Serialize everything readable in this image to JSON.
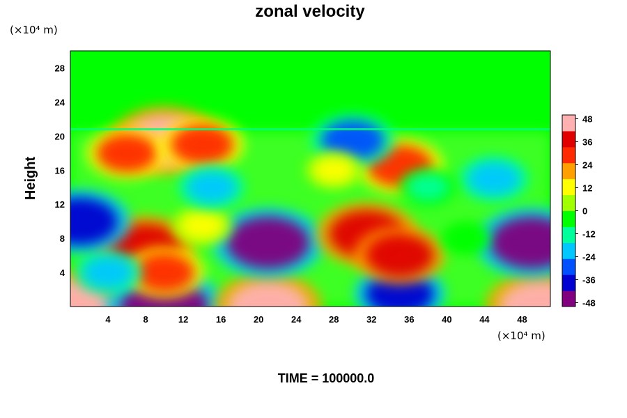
{
  "chart_data": {
    "type": "heatmap",
    "title": "zonal velocity",
    "ylabel": "Height",
    "xlabel": "",
    "x_unit_label": "(×10⁴ m)",
    "y_unit_label": "(×10⁴ m)",
    "x_ticks": [
      4,
      8,
      12,
      16,
      20,
      24,
      28,
      32,
      36,
      40,
      44,
      48
    ],
    "y_ticks": [
      4,
      8,
      12,
      16,
      20,
      24,
      28
    ],
    "xlim": [
      0,
      51
    ],
    "ylim": [
      0,
      30
    ],
    "colorbar": {
      "ticks": [
        48,
        36,
        24,
        12,
        0,
        -12,
        -24,
        -36,
        -48
      ],
      "range": [
        -50,
        50
      ],
      "colors": [
        "#800080",
        "#0000d0",
        "#0050ff",
        "#00c8ff",
        "#00ff9a",
        "#00ff00",
        "#a0ff00",
        "#ffff00",
        "#ffa000",
        "#ff2a00",
        "#e00000",
        "#ffb0b0"
      ]
    },
    "features": [
      {
        "x": 0,
        "y": 0,
        "value": 48
      },
      {
        "x": 10,
        "y": 0,
        "value": -50
      },
      {
        "x": 21,
        "y": 0,
        "value": 44
      },
      {
        "x": 50,
        "y": 0,
        "value": 46
      },
      {
        "x": 35,
        "y": 1.5,
        "value": -34
      },
      {
        "x": 8,
        "y": 7,
        "value": 38
      },
      {
        "x": 10,
        "y": 4,
        "value": 28
      },
      {
        "x": 4,
        "y": 4,
        "value": -20
      },
      {
        "x": 21,
        "y": 7.5,
        "value": -46
      },
      {
        "x": 31.5,
        "y": 8.5,
        "value": 40
      },
      {
        "x": 35,
        "y": 6,
        "value": 34
      },
      {
        "x": 49,
        "y": 7.5,
        "value": -46
      },
      {
        "x": 14,
        "y": 9.5,
        "value": 16
      },
      {
        "x": 42,
        "y": 8,
        "value": -8
      },
      {
        "x": 1,
        "y": 10,
        "value": -40
      },
      {
        "x": 10,
        "y": 19.5,
        "value": 44
      },
      {
        "x": 6,
        "y": 18,
        "value": 28
      },
      {
        "x": 14,
        "y": 19,
        "value": 30
      },
      {
        "x": 35,
        "y": 16.5,
        "value": 32
      },
      {
        "x": 30,
        "y": 19.5,
        "value": -30
      },
      {
        "x": 45,
        "y": 15,
        "value": -22
      },
      {
        "x": 15,
        "y": 14,
        "value": -20
      },
      {
        "x": 38,
        "y": 14,
        "value": -14
      },
      {
        "x": 28,
        "y": 16,
        "value": 14
      }
    ]
  },
  "footer": {
    "time_label": "TIME = 100000.0"
  }
}
